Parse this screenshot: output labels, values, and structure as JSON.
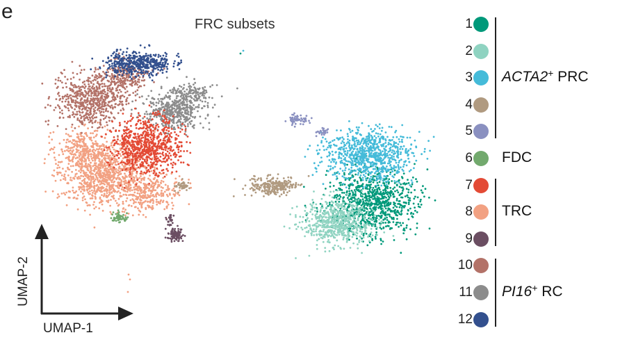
{
  "panel_letter": "e",
  "chart_data": {
    "type": "scatter",
    "title": "FRC subsets",
    "xlabel": "UMAP-1",
    "ylabel": "UMAP-2",
    "grid": false,
    "legend_placement": "right",
    "clusters": [
      {
        "id": "1",
        "color": "#00997a"
      },
      {
        "id": "2",
        "color": "#8fd3c1"
      },
      {
        "id": "3",
        "color": "#45bbd9"
      },
      {
        "id": "4",
        "color": "#b09a80"
      },
      {
        "id": "5",
        "color": "#8a90c0"
      },
      {
        "id": "6",
        "color": "#72a96d"
      },
      {
        "id": "7",
        "color": "#e34a35"
      },
      {
        "id": "8",
        "color": "#f2a182"
      },
      {
        "id": "9",
        "color": "#6b4e62"
      },
      {
        "id": "10",
        "color": "#b37268"
      },
      {
        "id": "11",
        "color": "#8c8c8c"
      },
      {
        "id": "12",
        "color": "#33508e"
      }
    ],
    "groups": [
      {
        "gene": "ACTA2",
        "sup": "+",
        "suffix": "PRC",
        "members": [
          "1",
          "2",
          "3",
          "4",
          "5"
        ]
      },
      {
        "gene": "",
        "sup": "",
        "suffix": "FDC",
        "members": [
          "6"
        ]
      },
      {
        "gene": "",
        "sup": "",
        "suffix": "TRC",
        "members": [
          "7",
          "8",
          "9"
        ]
      },
      {
        "gene": "PI16",
        "sup": "+",
        "suffix": "RC",
        "members": [
          "10",
          "11",
          "12"
        ]
      }
    ]
  }
}
